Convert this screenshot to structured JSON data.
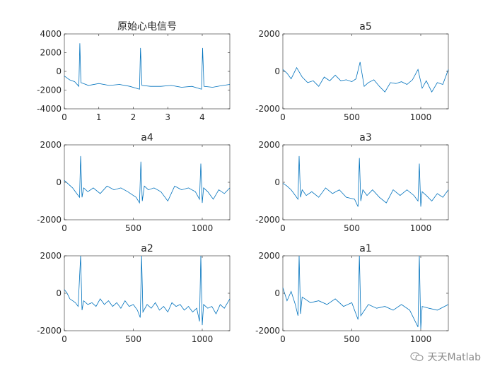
{
  "chart_data": [
    {
      "type": "line",
      "title": "原始心电信号",
      "xlim": [
        0,
        4.8
      ],
      "ylim": [
        -4000,
        4000
      ],
      "xticks": [
        0,
        1,
        2,
        3,
        4
      ],
      "yticks": [
        -4000,
        -2000,
        0,
        2000,
        4000
      ],
      "xtick_labels": [
        "0",
        "1",
        "2",
        "3",
        "4"
      ],
      "ytick_labels": [
        "-4000",
        "-2000",
        "0",
        "2000",
        "4000"
      ],
      "grid": false,
      "color": "#0072BD",
      "series": [
        {
          "x": [
            0,
            0.15,
            0.3,
            0.42,
            0.45,
            0.48,
            0.7,
            1.0,
            1.3,
            1.6,
            1.9,
            2.18,
            2.21,
            2.25,
            2.5,
            2.8,
            3.1,
            3.4,
            3.7,
            3.98,
            4.01,
            4.05,
            4.3,
            4.6,
            4.8
          ],
          "values": [
            -500,
            -900,
            -1100,
            -1600,
            3000,
            -1200,
            -1500,
            -1300,
            -1500,
            -1400,
            -1600,
            -1900,
            2500,
            -1500,
            -1600,
            -1600,
            -1500,
            -1700,
            -1600,
            -1900,
            2500,
            -1600,
            -1700,
            -1500,
            -1400
          ]
        }
      ]
    },
    {
      "type": "line",
      "title": "a5",
      "xlim": [
        0,
        1200
      ],
      "ylim": [
        -2000,
        2000
      ],
      "xticks": [
        0,
        500,
        1000
      ],
      "yticks": [
        -2000,
        0,
        2000
      ],
      "xtick_labels": [
        "0",
        "500",
        "1000"
      ],
      "ytick_labels": [
        "-2000",
        "0",
        "2000"
      ],
      "grid": false,
      "color": "#0072BD",
      "series": [
        {
          "x": [
            0,
            30,
            60,
            100,
            140,
            180,
            220,
            260,
            300,
            340,
            380,
            420,
            460,
            500,
            530,
            560,
            590,
            620,
            660,
            700,
            740,
            780,
            820,
            860,
            900,
            940,
            980,
            1010,
            1040,
            1080,
            1120,
            1160,
            1200
          ],
          "values": [
            100,
            -100,
            -400,
            200,
            -300,
            -600,
            -500,
            -800,
            -300,
            -500,
            -200,
            -500,
            -450,
            -550,
            -400,
            500,
            -800,
            -600,
            -450,
            -800,
            -1100,
            -600,
            -650,
            -550,
            -700,
            -450,
            100,
            -900,
            -500,
            -1100,
            -600,
            -700,
            100
          ]
        }
      ]
    },
    {
      "type": "line",
      "title": "a4",
      "xlim": [
        0,
        1200
      ],
      "ylim": [
        -2000,
        2000
      ],
      "xticks": [
        0,
        500,
        1000
      ],
      "yticks": [
        -2000,
        0,
        2000
      ],
      "xtick_labels": [
        "0",
        "500",
        "1000"
      ],
      "ytick_labels": [
        "-2000",
        "0",
        "2000"
      ],
      "grid": false,
      "color": "#0072BD",
      "series": [
        {
          "x": [
            0,
            30,
            60,
            90,
            110,
            118,
            128,
            140,
            170,
            210,
            260,
            310,
            360,
            410,
            460,
            520,
            545,
            555,
            565,
            580,
            610,
            650,
            700,
            750,
            800,
            850,
            900,
            950,
            980,
            990,
            1000,
            1010,
            1040,
            1080,
            1120,
            1160,
            1200
          ],
          "values": [
            100,
            -100,
            -300,
            -600,
            -800,
            1400,
            -800,
            -300,
            -500,
            -300,
            -600,
            -200,
            -400,
            -300,
            -500,
            -800,
            -1100,
            1100,
            -1000,
            -200,
            -400,
            -300,
            -500,
            -1000,
            -200,
            -400,
            -300,
            -500,
            -900,
            1000,
            -1100,
            -300,
            -500,
            -900,
            -400,
            -600,
            -300
          ]
        }
      ]
    },
    {
      "type": "line",
      "title": "a3",
      "xlim": [
        0,
        1200
      ],
      "ylim": [
        -2000,
        2000
      ],
      "xticks": [
        0,
        500,
        1000
      ],
      "yticks": [
        -2000,
        0,
        2000
      ],
      "xtick_labels": [
        "0",
        "500",
        "1000"
      ],
      "ytick_labels": [
        "-2000",
        "0",
        "2000"
      ],
      "grid": false,
      "color": "#0072BD",
      "series": [
        {
          "x": [
            0,
            30,
            60,
            90,
            110,
            118,
            128,
            140,
            170,
            210,
            260,
            310,
            360,
            410,
            460,
            520,
            545,
            555,
            565,
            580,
            610,
            650,
            700,
            750,
            800,
            850,
            900,
            950,
            980,
            990,
            1000,
            1010,
            1040,
            1080,
            1120,
            1160,
            1200
          ],
          "values": [
            -50,
            -200,
            -400,
            -700,
            -900,
            1400,
            -800,
            -400,
            -700,
            -500,
            -800,
            -300,
            -600,
            -400,
            -800,
            -900,
            -1300,
            1300,
            -1000,
            -400,
            -700,
            -400,
            -800,
            -1100,
            -400,
            -700,
            -400,
            -700,
            -1000,
            1000,
            -1300,
            -500,
            -700,
            -1000,
            -600,
            -800,
            -400
          ]
        }
      ]
    },
    {
      "type": "line",
      "title": "a2",
      "xlim": [
        0,
        1200
      ],
      "ylim": [
        -2000,
        2000
      ],
      "xticks": [
        0,
        500,
        1000
      ],
      "yticks": [
        -2000,
        0,
        2000
      ],
      "xtick_labels": [
        "0",
        "500",
        "1000"
      ],
      "ytick_labels": [
        "-2000",
        "0",
        "2000"
      ],
      "grid": false,
      "color": "#0072BD",
      "series": [
        {
          "x": [
            0,
            20,
            40,
            60,
            80,
            100,
            118,
            128,
            140,
            170,
            200,
            230,
            260,
            290,
            320,
            350,
            380,
            410,
            440,
            470,
            500,
            530,
            550,
            560,
            570,
            600,
            630,
            660,
            690,
            720,
            750,
            780,
            810,
            840,
            870,
            900,
            930,
            960,
            980,
            990,
            1000,
            1010,
            1040,
            1070,
            1100,
            1130,
            1160,
            1200
          ],
          "values": [
            200,
            0,
            -300,
            -400,
            -500,
            -700,
            2000,
            -900,
            -400,
            -600,
            -500,
            -700,
            -300,
            -600,
            -400,
            -700,
            -500,
            -800,
            -400,
            -700,
            -600,
            -900,
            -1300,
            2000,
            -1000,
            -600,
            -800,
            -500,
            -900,
            -700,
            -1000,
            -500,
            -700,
            -600,
            -900,
            -700,
            -1000,
            -800,
            -1500,
            2000,
            -1700,
            -600,
            -800,
            -700,
            -1100,
            -600,
            -800,
            -300
          ]
        }
      ]
    },
    {
      "type": "line",
      "title": "a1",
      "xlim": [
        0,
        1200
      ],
      "ylim": [
        -2000,
        2000
      ],
      "xticks": [
        0,
        500,
        1000
      ],
      "yticks": [
        -2000,
        0,
        2000
      ],
      "xtick_labels": [
        "0",
        "500",
        "1000"
      ],
      "ytick_labels": [
        "-2000",
        "0",
        "2000"
      ],
      "grid": false,
      "color": "#0072BD",
      "series": [
        {
          "x": [
            0,
            30,
            60,
            90,
            110,
            118,
            128,
            140,
            200,
            260,
            320,
            380,
            440,
            500,
            545,
            555,
            565,
            620,
            680,
            740,
            800,
            860,
            920,
            980,
            990,
            1000,
            1010,
            1060,
            1120,
            1200
          ],
          "values": [
            300,
            -400,
            100,
            -600,
            -1200,
            2000,
            -1100,
            -200,
            -500,
            -400,
            -600,
            -300,
            -700,
            -500,
            -1400,
            2000,
            -1200,
            -600,
            -800,
            -700,
            -900,
            -600,
            -900,
            -1800,
            2000,
            -1900,
            -700,
            -800,
            -900,
            -600
          ]
        }
      ]
    }
  ],
  "watermark": {
    "text": "天天Matlab",
    "icon": "wechat-icon"
  }
}
